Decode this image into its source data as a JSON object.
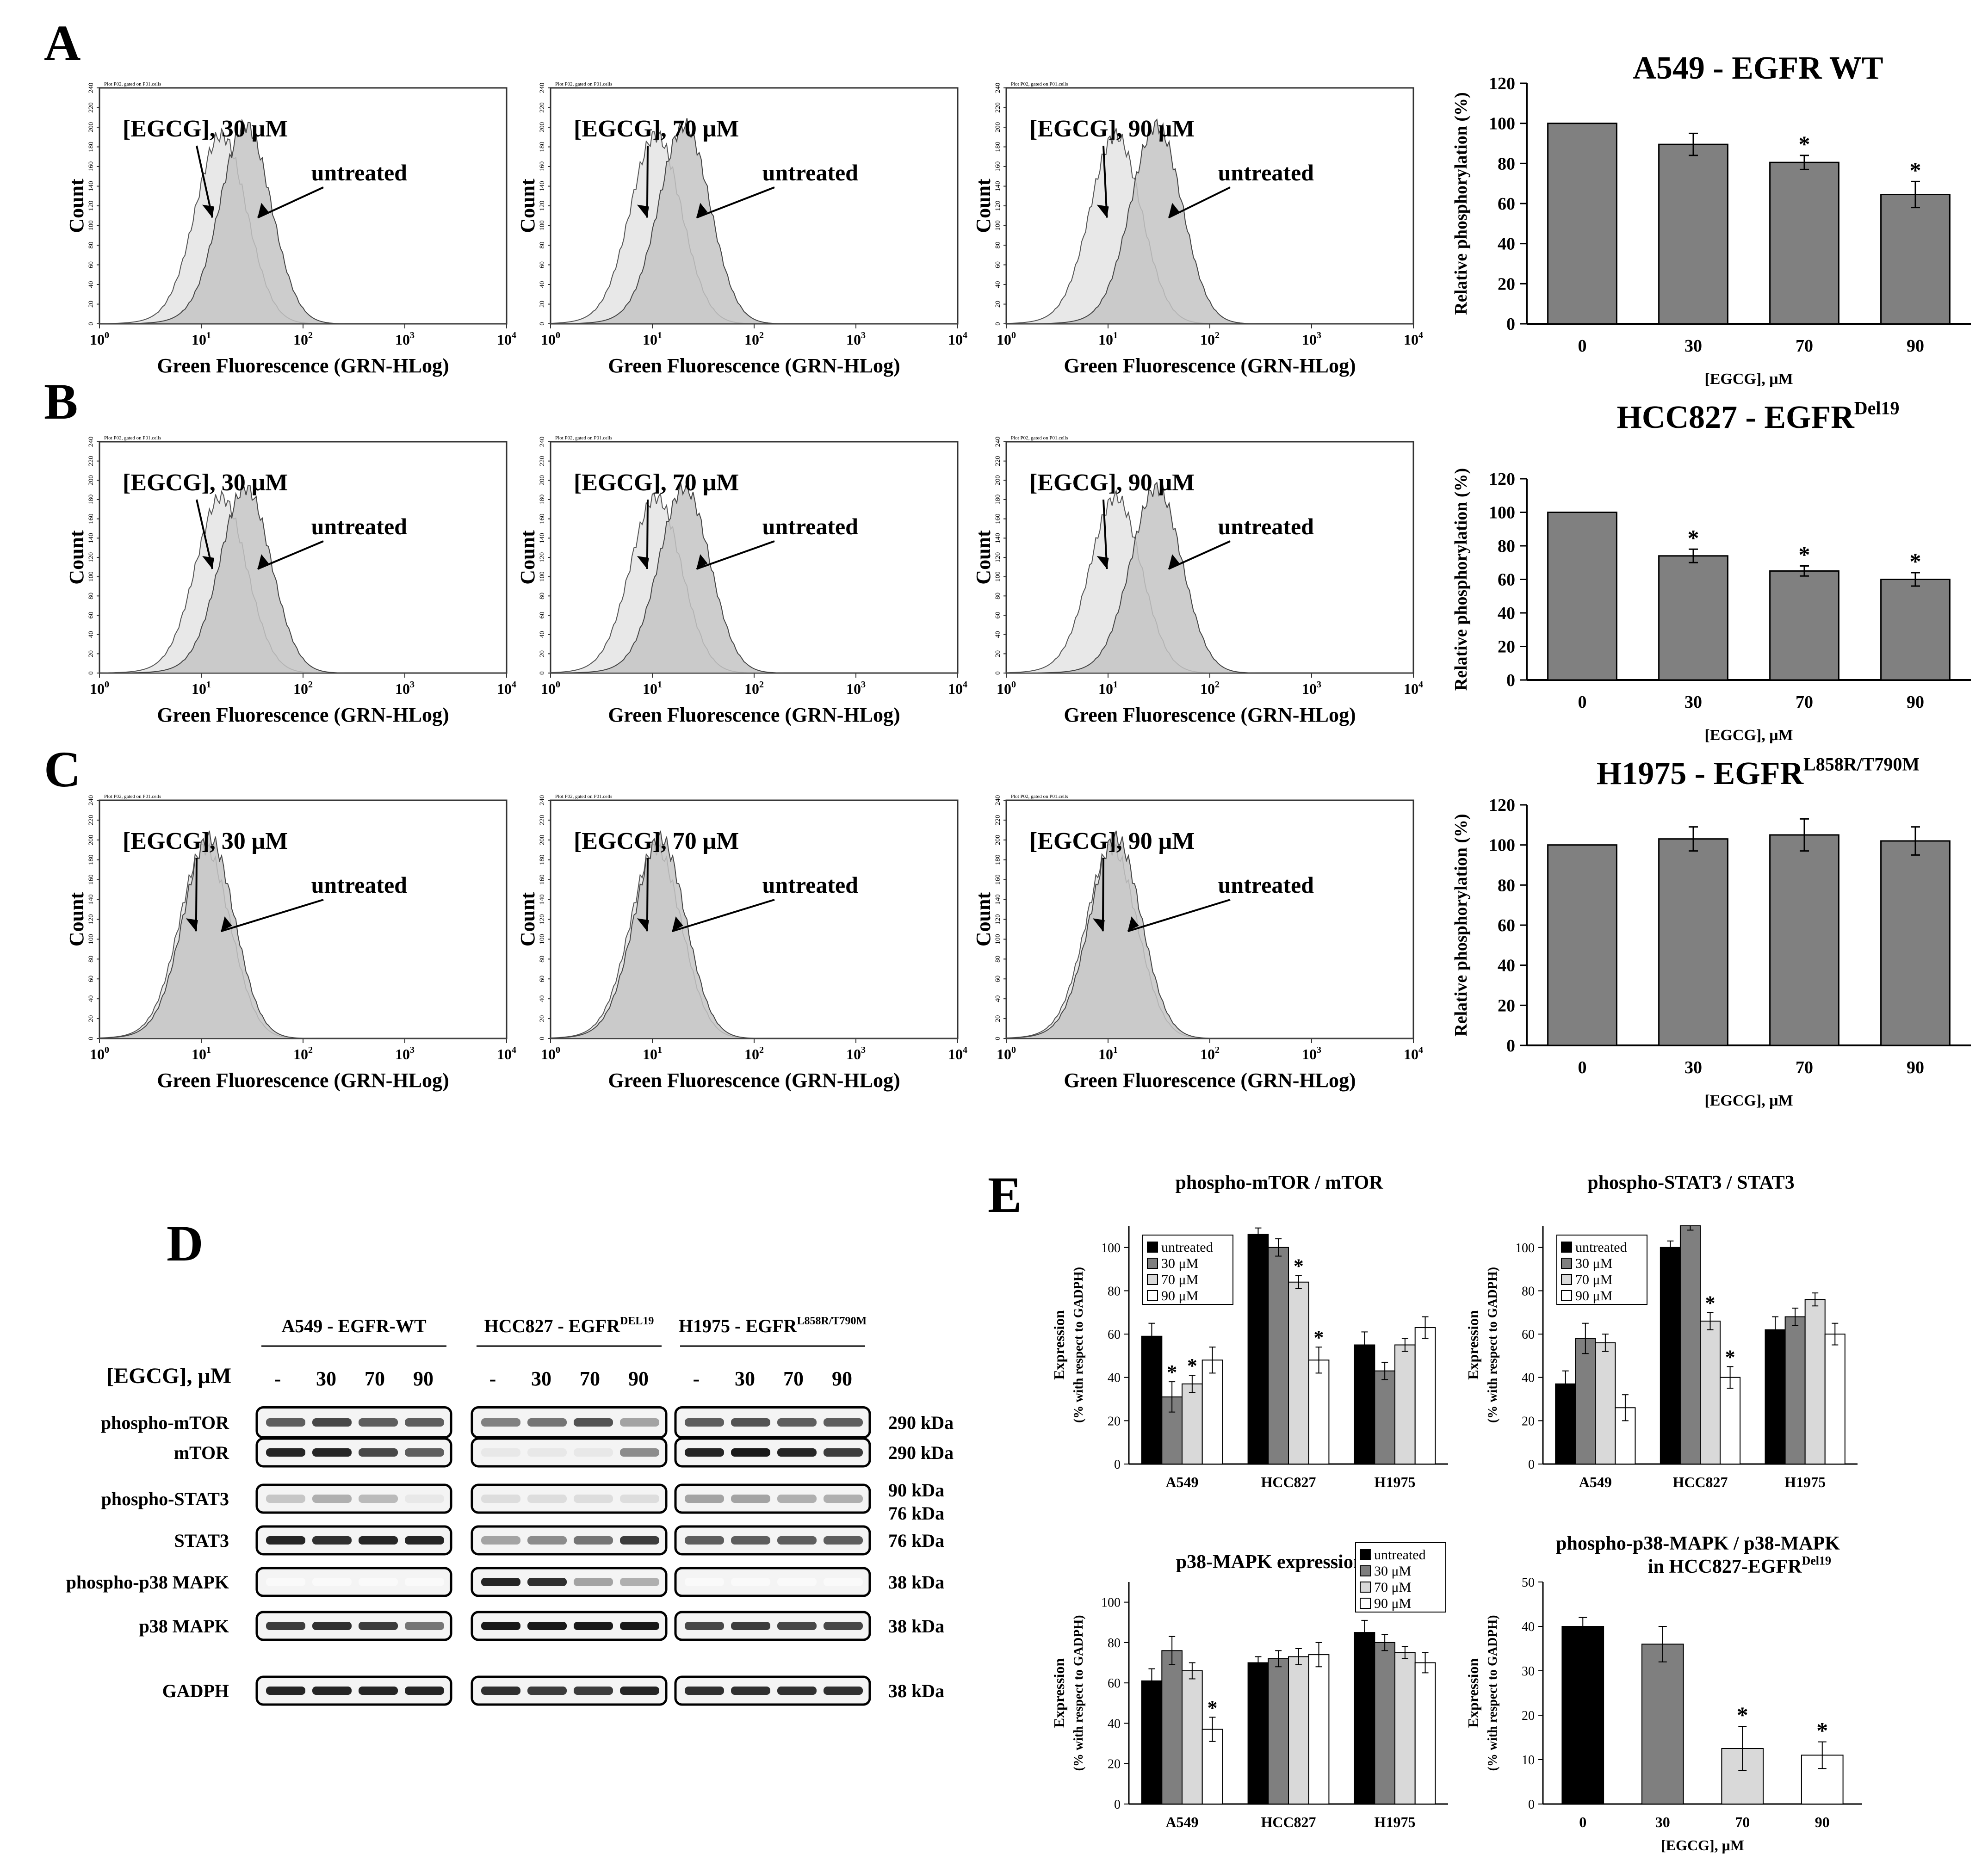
{
  "figure": {
    "panel_labels": [
      "A",
      "B",
      "C",
      "D",
      "E"
    ]
  },
  "flow_common": {
    "gate_text": "Plot P02, gated on P01.cells",
    "y_title": "Count",
    "x_title": "Green Fluorescence (GRN-HLog)",
    "x_ticks": [
      "10",
      "10",
      "10",
      "10",
      "10"
    ],
    "x_tick_exps": [
      "0",
      "1",
      "2",
      "3",
      "4"
    ],
    "y_ticks": [
      "0",
      "20",
      "40",
      "60",
      "80",
      "100",
      "120",
      "140",
      "160",
      "180",
      "200",
      "220",
      "240"
    ],
    "treated_colors": {
      "treated": "#e8e8e8",
      "untreated": "#c4c4c4"
    }
  },
  "flow_panels": [
    {
      "row": "A",
      "dose_label": "[EGCG], 30 μM",
      "untreated_label": "untreated"
    },
    {
      "row": "A",
      "dose_label": "[EGCG], 70 μM",
      "untreated_label": "untreated"
    },
    {
      "row": "A",
      "dose_label": "[EGCG], 90 μM",
      "untreated_label": "untreated"
    },
    {
      "row": "B",
      "dose_label": "[EGCG], 30 μM",
      "untreated_label": "untreated"
    },
    {
      "row": "B",
      "dose_label": "[EGCG], 70 μM",
      "untreated_label": "untreated"
    },
    {
      "row": "B",
      "dose_label": "[EGCG], 90 μM",
      "untreated_label": "untreated"
    },
    {
      "row": "C",
      "dose_label": "[EGCG], 30 μM",
      "untreated_label": "untreated"
    },
    {
      "row": "C",
      "dose_label": "[EGCG], 70 μM",
      "untreated_label": "untreated"
    },
    {
      "row": "C",
      "dose_label": "[EGCG], 90 μM",
      "untreated_label": "untreated"
    }
  ],
  "western": {
    "groups": [
      {
        "name": "A549 - EGFR-WT",
        "sup": ""
      },
      {
        "name": "HCC827 - EGFR",
        "sup": "DEL19"
      },
      {
        "name": "H1975 - EGFR",
        "sup": "L858R/T790M"
      }
    ],
    "dose_header": "[EGCG], μM",
    "doses": [
      "-",
      "30",
      "70",
      "90"
    ],
    "rows": [
      {
        "label": "phospho-mTOR",
        "kda": "290 kDa"
      },
      {
        "label": "mTOR",
        "kda": "290 kDa"
      },
      {
        "label": "phospho-STAT3",
        "kda": "90 kDa"
      },
      {
        "label": "STAT3",
        "kda": "76 kDa"
      },
      {
        "label": "phospho-p38 MAPK",
        "kda": "38 kDa"
      },
      {
        "label": "p38 MAPK",
        "kda": "38 kDa"
      },
      {
        "label": "GADPH",
        "kda": "38 kDa"
      }
    ],
    "extra_kda": "76 kDa"
  },
  "chart_data": [
    {
      "id": "A",
      "type": "bar",
      "title": "A549 - EGFR WT",
      "title_sup": "",
      "categories": [
        "0",
        "30",
        "70",
        "90"
      ],
      "values": [
        100,
        89.5,
        80.5,
        64.5
      ],
      "errors": [
        0,
        5.5,
        3.5,
        6.5
      ],
      "significant": [
        false,
        false,
        true,
        true
      ],
      "xlabel": "[EGCG], μM",
      "ylabel": "Relative phosphorylation (%)",
      "ylim": [
        0,
        120
      ],
      "yticks": [
        "0",
        "20",
        "40",
        "60",
        "80",
        "100",
        "120"
      ],
      "color": "#808080"
    },
    {
      "id": "B",
      "type": "bar",
      "title": "HCC827 - EGFR",
      "title_sup": "Del19",
      "categories": [
        "0",
        "30",
        "70",
        "90"
      ],
      "values": [
        100,
        74,
        65,
        60
      ],
      "errors": [
        0,
        4,
        3,
        4
      ],
      "significant": [
        false,
        true,
        true,
        true
      ],
      "xlabel": "[EGCG], μM",
      "ylabel": "Relative phosphorylation (%)",
      "ylim": [
        0,
        120
      ],
      "yticks": [
        "0",
        "20",
        "40",
        "60",
        "80",
        "100",
        "120"
      ],
      "color": "#808080"
    },
    {
      "id": "C",
      "type": "bar",
      "title": "H1975 - EGFR",
      "title_sup": "L858R/T790M",
      "categories": [
        "0",
        "30",
        "70",
        "90"
      ],
      "values": [
        100,
        103,
        105,
        102
      ],
      "errors": [
        0,
        6,
        8,
        7
      ],
      "significant": [
        false,
        false,
        false,
        false
      ],
      "xlabel": "[EGCG], μM",
      "ylabel": "Relative phosphorylation (%)",
      "ylim": [
        0,
        120
      ],
      "yticks": [
        "0",
        "20",
        "40",
        "60",
        "80",
        "100",
        "120"
      ],
      "color": "#808080"
    },
    {
      "id": "E1",
      "type": "bar",
      "title": "phospho-mTOR / mTOR",
      "title_sup": "",
      "categories": [
        "A549",
        "HCC827",
        "H1975"
      ],
      "series": [
        {
          "name": "untreated",
          "values": [
            59,
            106,
            55
          ],
          "errors": [
            6,
            3,
            6
          ],
          "sig": [
            false,
            false,
            false
          ]
        },
        {
          "name": "30 μM",
          "values": [
            31,
            100,
            43
          ],
          "errors": [
            7,
            4,
            4
          ],
          "sig": [
            true,
            false,
            false
          ]
        },
        {
          "name": "70 μM",
          "values": [
            37,
            84,
            55
          ],
          "errors": [
            4,
            3,
            3
          ],
          "sig": [
            true,
            true,
            false
          ]
        },
        {
          "name": "90 μM",
          "values": [
            48,
            48,
            63
          ],
          "errors": [
            6,
            6,
            5
          ],
          "sig": [
            false,
            true,
            false
          ]
        }
      ],
      "xlabel": "",
      "ylabel": "Expression",
      "ylabel2": "(% with respect to GADPH)",
      "ylim": [
        0,
        110
      ],
      "yticks": [
        "0",
        "20",
        "40",
        "60",
        "80",
        "100"
      ]
    },
    {
      "id": "E2",
      "type": "bar",
      "title": "phospho-STAT3 / STAT3",
      "title_sup": "",
      "categories": [
        "A549",
        "HCC827",
        "H1975"
      ],
      "series": [
        {
          "name": "untreated",
          "values": [
            37,
            100,
            62
          ],
          "errors": [
            6,
            3,
            6
          ],
          "sig": [
            false,
            false,
            false
          ]
        },
        {
          "name": "30 μM",
          "values": [
            58,
            110,
            68
          ],
          "errors": [
            7,
            2,
            4
          ],
          "sig": [
            false,
            false,
            false
          ]
        },
        {
          "name": "70 μM",
          "values": [
            56,
            66,
            76
          ],
          "errors": [
            4,
            4,
            3
          ],
          "sig": [
            false,
            true,
            false
          ]
        },
        {
          "name": "90 μM",
          "values": [
            26,
            40,
            60
          ],
          "errors": [
            6,
            5,
            5
          ],
          "sig": [
            false,
            true,
            false
          ]
        }
      ],
      "xlabel": "",
      "ylabel": "Expression",
      "ylabel2": "(% with respect to GADPH)",
      "ylim": [
        0,
        110
      ],
      "yticks": [
        "0",
        "20",
        "40",
        "60",
        "80",
        "100"
      ]
    },
    {
      "id": "E3",
      "type": "bar",
      "title": "p38-MAPK expression",
      "title_sup": "",
      "categories": [
        "A549",
        "HCC827",
        "H1975"
      ],
      "series": [
        {
          "name": "untreated",
          "values": [
            61,
            70,
            85
          ],
          "errors": [
            6,
            3,
            6
          ],
          "sig": [
            false,
            false,
            false
          ]
        },
        {
          "name": "30 μM",
          "values": [
            76,
            72,
            80
          ],
          "errors": [
            7,
            4,
            4
          ],
          "sig": [
            false,
            false,
            false
          ]
        },
        {
          "name": "70 μM",
          "values": [
            66,
            73,
            75
          ],
          "errors": [
            4,
            4,
            3
          ],
          "sig": [
            false,
            false,
            false
          ]
        },
        {
          "name": "90 μM",
          "values": [
            37,
            74,
            70
          ],
          "errors": [
            6,
            6,
            5
          ],
          "sig": [
            true,
            false,
            false
          ]
        }
      ],
      "xlabel": "",
      "ylabel": "Expression",
      "ylabel2": "(% with respect to GADPH)",
      "ylim": [
        0,
        110
      ],
      "yticks": [
        "0",
        "20",
        "40",
        "60",
        "80",
        "100"
      ]
    },
    {
      "id": "E4",
      "type": "bar",
      "title": "phospho-p38-MAPK / p38-MAPK",
      "title2": "in HCC827-EGFR",
      "title_sup": "Del19",
      "categories": [
        "0",
        "30",
        "70",
        "90"
      ],
      "values": [
        40,
        36,
        12.5,
        11
      ],
      "errors": [
        2,
        4,
        5,
        3
      ],
      "significant": [
        false,
        false,
        true,
        true
      ],
      "colors": [
        "#000000",
        "#7f7f7f",
        "#d9d9d9",
        "#ffffff"
      ],
      "xlabel": "[EGCG], μM",
      "ylabel": "Expression",
      "ylabel2": "(% with respect to GADPH)",
      "ylim": [
        0,
        50
      ],
      "yticks": [
        "0",
        "10",
        "20",
        "30",
        "40",
        "50"
      ]
    }
  ],
  "legend_series": [
    "untreated",
    "30 μM",
    "70 μM",
    "90 μM"
  ],
  "legend_colors": [
    "#000000",
    "#7f7f7f",
    "#d9d9d9",
    "#ffffff"
  ]
}
